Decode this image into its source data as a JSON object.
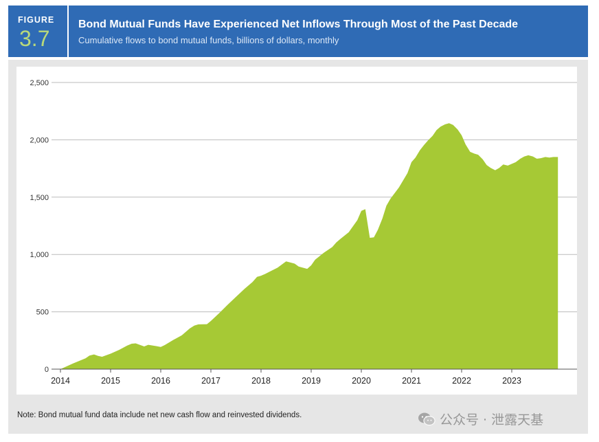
{
  "figure": {
    "label": "FIGURE",
    "number": "3.7",
    "title": "Bond Mutual Funds Have Experienced Net Inflows Through Most of the Past Decade",
    "subtitle": "Cumulative flows to bond mutual funds, billions of dollars, monthly"
  },
  "note": "Note: Bond mutual fund data include net new cash flow and reinvested dividends.",
  "colors": {
    "header_bg": "#2f6bb5",
    "figure_number": "#b9d97a",
    "area_fill": "#a6c935",
    "panel_bg": "#e6e6e6",
    "gridline": "#bbbbbb"
  },
  "chart_data": {
    "type": "area",
    "title": "Bond Mutual Funds Have Experienced Net Inflows Through Most of the Past Decade",
    "subtitle": "Cumulative flows to bond mutual funds, billions of dollars, monthly",
    "xlabel": "",
    "ylabel": "",
    "ylim": [
      0,
      2500
    ],
    "xlim": [
      2014.0,
      2024.0
    ],
    "y_ticks": [
      {
        "value": 0,
        "label": "0"
      },
      {
        "value": 500,
        "label": "500"
      },
      {
        "value": 1000,
        "label": "1,000"
      },
      {
        "value": 1500,
        "label": "1,500"
      },
      {
        "value": 2000,
        "label": "2,000"
      },
      {
        "value": 2500,
        "label": "2,500"
      }
    ],
    "x_ticks": [
      "2014",
      "2015",
      "2016",
      "2017",
      "2018",
      "2019",
      "2020",
      "2021",
      "2022",
      "2023"
    ],
    "grid": "horizontal",
    "legend": "none",
    "x": [
      2014.0,
      2014.25,
      2014.5,
      2014.58,
      2014.67,
      2014.75,
      2014.83,
      2015.0,
      2015.17,
      2015.33,
      2015.42,
      2015.5,
      2015.67,
      2015.75,
      2015.92,
      2016.0,
      2016.08,
      2016.25,
      2016.42,
      2016.58,
      2016.67,
      2016.75,
      2016.92,
      2017.0,
      2017.17,
      2017.33,
      2017.5,
      2017.67,
      2017.83,
      2017.92,
      2018.0,
      2018.08,
      2018.17,
      2018.33,
      2018.5,
      2018.67,
      2018.75,
      2018.92,
      2019.0,
      2019.08,
      2019.25,
      2019.42,
      2019.5,
      2019.58,
      2019.75,
      2019.92,
      2020.0,
      2020.08,
      2020.17,
      2020.25,
      2020.33,
      2020.42,
      2020.5,
      2020.58,
      2020.75,
      2020.92,
      2021.0,
      2021.08,
      2021.17,
      2021.25,
      2021.33,
      2021.42,
      2021.5,
      2021.58,
      2021.67,
      2021.75,
      2021.83,
      2021.92,
      2022.0,
      2022.08,
      2022.17,
      2022.25,
      2022.33,
      2022.42,
      2022.5,
      2022.58,
      2022.67,
      2022.75,
      2022.83,
      2022.92,
      2023.0,
      2023.08,
      2023.17,
      2023.25,
      2023.33,
      2023.42,
      2023.5,
      2023.58,
      2023.67,
      2023.75,
      2023.83,
      2023.92
    ],
    "series": [
      {
        "values": [
          0,
          50,
          95,
          118,
          128,
          115,
          108,
          135,
          168,
          205,
          222,
          225,
          198,
          212,
          200,
          193,
          210,
          255,
          295,
          355,
          380,
          390,
          392,
          420,
          490,
          560,
          630,
          700,
          760,
          805,
          815,
          830,
          850,
          885,
          940,
          920,
          895,
          875,
          905,
          955,
          1015,
          1065,
          1105,
          1135,
          1195,
          1300,
          1380,
          1395,
          1145,
          1150,
          1215,
          1315,
          1425,
          1485,
          1585,
          1710,
          1805,
          1845,
          1910,
          1955,
          1995,
          2035,
          2085,
          2115,
          2135,
          2145,
          2130,
          2090,
          2040,
          1960,
          1895,
          1880,
          1870,
          1830,
          1780,
          1755,
          1735,
          1755,
          1785,
          1775,
          1790,
          1805,
          1835,
          1855,
          1865,
          1855,
          1835,
          1840,
          1850,
          1845,
          1850,
          1850
        ]
      }
    ]
  },
  "watermark": "公众号 · 泄露天基"
}
